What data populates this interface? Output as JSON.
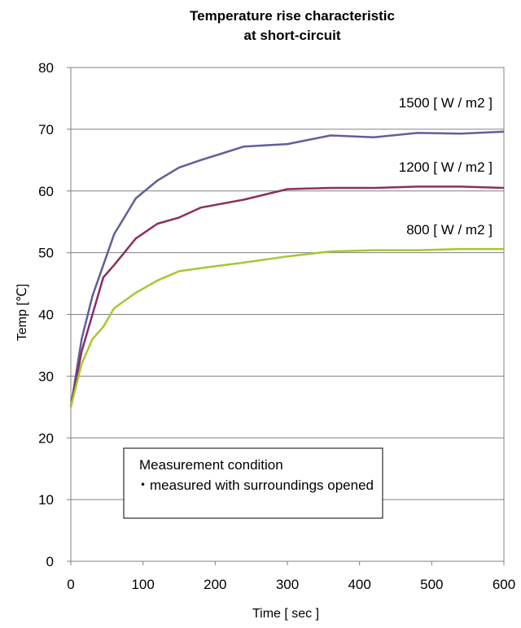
{
  "chart_data": {
    "type": "line",
    "title": [
      "Temperature rise characteristic",
      "at short-circuit"
    ],
    "xlabel": "Time [ sec ]",
    "ylabel": "Temp [℃]",
    "xlim": [
      0,
      600
    ],
    "ylim": [
      0,
      80
    ],
    "x_ticks": [
      0,
      100,
      200,
      300,
      400,
      500,
      600
    ],
    "y_ticks": [
      0,
      10,
      20,
      30,
      40,
      50,
      60,
      70,
      80
    ],
    "grid": "horizontal",
    "series": [
      {
        "name": "1500 [ W / m2 ]",
        "color": "#5f5f9a",
        "x": [
          0,
          15,
          30,
          45,
          60,
          90,
          120,
          150,
          180,
          210,
          240,
          300,
          360,
          420,
          480,
          540,
          600
        ],
        "y": [
          25,
          36,
          43,
          48,
          53,
          58.8,
          61.7,
          63.8,
          65,
          66.1,
          67.2,
          67.6,
          69,
          68.7,
          69.4,
          69.3,
          69.6
        ]
      },
      {
        "name": "1200 [ W / m2 ]",
        "color": "#8b2f5e",
        "x": [
          0,
          15,
          30,
          45,
          60,
          90,
          120,
          150,
          180,
          240,
          300,
          360,
          420,
          480,
          540,
          600
        ],
        "y": [
          25,
          34,
          40,
          46,
          48,
          52.3,
          54.7,
          55.7,
          57.3,
          58.6,
          60.3,
          60.5,
          60.5,
          60.7,
          60.7,
          60.5
        ]
      },
      {
        "name": "800 [ W / m2 ]",
        "color": "#a4c832",
        "x": [
          0,
          15,
          30,
          45,
          60,
          90,
          120,
          150,
          180,
          240,
          300,
          360,
          420,
          480,
          540,
          600
        ],
        "y": [
          25,
          32,
          36,
          38,
          41,
          43.5,
          45.5,
          47,
          47.5,
          48.4,
          49.4,
          50.2,
          50.4,
          50.4,
          50.6,
          50.6
        ]
      }
    ],
    "annotation": {
      "line1": "Measurement condition",
      "line2": "・measured with surroundings opened"
    }
  }
}
